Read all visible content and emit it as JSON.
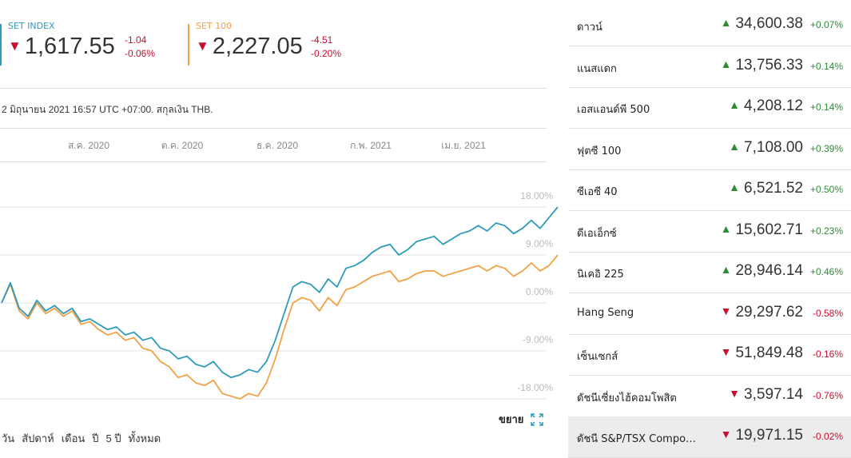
{
  "indices": [
    {
      "name": "SET INDEX",
      "value": "1,617.55",
      "change": "-1.04",
      "change_pct": "-0.06%",
      "color": "#2e9bbb",
      "direction": "down"
    },
    {
      "name": "SET 100",
      "value": "2,227.05",
      "change": "-4.51",
      "change_pct": "-0.20%",
      "color": "#f2a145",
      "direction": "down"
    }
  ],
  "meta": "2 มิถุนายน 2021 16:57 UTC +07:00. สกุลเงิน THB.",
  "months": [
    "ส.ค. 2020",
    "ต.ค. 2020",
    "ธ.ค. 2020",
    "ก.พ. 2021",
    "เม.ย. 2021"
  ],
  "expand_label": "ขยาย",
  "ranges": [
    "วัน",
    "สัปดาห์",
    "เดือน",
    "ปี",
    "5 ปี",
    "ทั้งหมด"
  ],
  "markets": [
    {
      "name": "ดาวน์",
      "value": "34,600.38",
      "change": "+0.07%",
      "direction": "up"
    },
    {
      "name": "แนสแดก",
      "value": "13,756.33",
      "change": "+0.14%",
      "direction": "up"
    },
    {
      "name": "เอสแอนด์พี 500",
      "value": "4,208.12",
      "change": "+0.14%",
      "direction": "up"
    },
    {
      "name": "ฟุตซี 100",
      "value": "7,108.00",
      "change": "+0.39%",
      "direction": "up"
    },
    {
      "name": "ซีเอซี 40",
      "value": "6,521.52",
      "change": "+0.50%",
      "direction": "up"
    },
    {
      "name": "ดีเอเอ็กซ์",
      "value": "15,602.71",
      "change": "+0.23%",
      "direction": "up"
    },
    {
      "name": "นิเคอิ 225",
      "value": "28,946.14",
      "change": "+0.46%",
      "direction": "up"
    },
    {
      "name": "Hang Seng",
      "value": "29,297.62",
      "change": "-0.58%",
      "direction": "down"
    },
    {
      "name": "เซ็นเซกส์",
      "value": "51,849.48",
      "change": "-0.16%",
      "direction": "down"
    },
    {
      "name": "ดัชนีเซี่ยงไฮ้คอมโพสิต",
      "value": "3,597.14",
      "change": "-0.76%",
      "direction": "down"
    },
    {
      "name": "ดัชนี S&P/TSX Composite",
      "value": "19,971.15",
      "change": "-0.02%",
      "direction": "down",
      "selected": true
    }
  ],
  "chart_data": {
    "type": "line",
    "y_ticks": [
      "18.00%",
      "9.00%",
      "0.00%",
      "-9.00%",
      "-18.00%"
    ],
    "ylim": [
      -18,
      18
    ],
    "series": [
      {
        "name": "SET INDEX",
        "color": "#2e9bbb",
        "values": [
          0.0,
          3.8,
          -1.0,
          -2.5,
          0.5,
          -1.5,
          -0.5,
          -2.0,
          -1.0,
          -3.5,
          -3.0,
          -4.0,
          -5.0,
          -4.5,
          -6.0,
          -5.5,
          -7.0,
          -6.5,
          -8.5,
          -9.0,
          -10.5,
          -10.0,
          -11.5,
          -12.0,
          -11.0,
          -13.0,
          -14.0,
          -13.5,
          -12.5,
          -13.0,
          -11.0,
          -7.0,
          -2.0,
          3.0,
          4.0,
          3.5,
          2.0,
          4.5,
          3.0,
          6.5,
          7.0,
          8.0,
          9.5,
          10.5,
          11.0,
          9.0,
          10.0,
          11.5,
          12.0,
          12.5,
          11.0,
          12.0,
          13.0,
          13.5,
          14.5,
          13.5,
          15.0,
          14.5,
          13.0,
          14.0,
          15.5,
          14.0,
          16.0,
          18.0
        ]
      },
      {
        "name": "SET 100",
        "color": "#f2a145",
        "values": [
          0.0,
          3.5,
          -1.5,
          -3.0,
          0.0,
          -2.0,
          -1.0,
          -2.5,
          -1.5,
          -4.0,
          -3.5,
          -5.0,
          -6.0,
          -5.5,
          -7.0,
          -6.5,
          -8.5,
          -9.0,
          -11.0,
          -12.0,
          -14.0,
          -13.5,
          -15.0,
          -15.5,
          -14.5,
          -17.0,
          -17.5,
          -18.0,
          -17.0,
          -17.5,
          -15.0,
          -10.5,
          -5.0,
          0.0,
          1.0,
          0.5,
          -1.5,
          1.0,
          -0.5,
          2.5,
          3.0,
          4.0,
          5.0,
          5.5,
          6.0,
          4.0,
          4.5,
          5.5,
          6.0,
          6.0,
          5.0,
          5.5,
          6.0,
          6.5,
          7.0,
          6.0,
          7.0,
          6.5,
          5.0,
          6.0,
          7.5,
          6.0,
          7.0,
          9.0
        ]
      }
    ]
  }
}
